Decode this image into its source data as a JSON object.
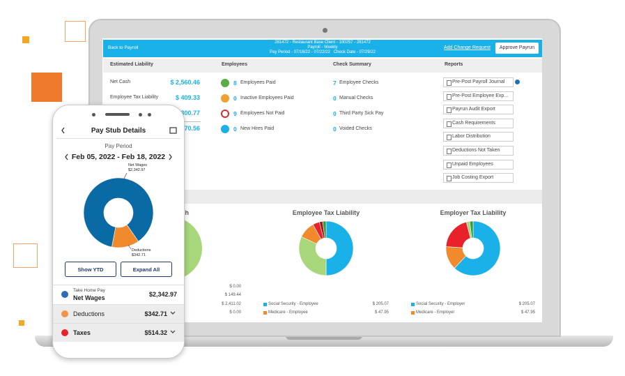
{
  "laptop": {
    "header": {
      "back": "Back to Payroll",
      "client": "281472 - Restaurant Base Client - 100257 - 281472",
      "payroll": "Payroll - Weekly",
      "period": "Pay Period - 07/16/22 - 07/22/22   Check Date - 07/29/22",
      "change_request": "Add Change Request",
      "approve": "Approve Payrun"
    },
    "columns": [
      "Estimated Liability",
      "Employees",
      "Check Summary",
      "Reports"
    ],
    "liability": [
      {
        "label": "Net Cash",
        "amount": "$ 2,560.46"
      },
      {
        "label": "Employee Tax Liability",
        "amount": "$ 409.33"
      }
    ],
    "liability_partial": [
      "300.77",
      "270.56"
    ],
    "employees": [
      {
        "count": "8",
        "label": "Employees Paid",
        "color": "#5aac44"
      },
      {
        "count": "0",
        "label": "Inactive Employees Paid",
        "color": "#f0a030"
      },
      {
        "count": "9",
        "label": "Employees Not Paid",
        "color": "#d03030"
      },
      {
        "count": "0",
        "label": "New Hires Paid",
        "color": "#1ab0e8"
      }
    ],
    "checks": [
      {
        "count": "7",
        "label": "Employee Checks"
      },
      {
        "count": "0",
        "label": "Manual Checks"
      },
      {
        "count": "0",
        "label": "Third Party Sick Pay"
      },
      {
        "count": "0",
        "label": "Voided Checks"
      }
    ],
    "reports": [
      "Pre-Post Payroll Journal",
      "Pre-Post Employee Exp...",
      "Payrun Audit Export",
      "Cash Requirements",
      "Labor Distribution",
      "Deductions Not Taken",
      "Unpaid Employees",
      "Job Costing Export"
    ],
    "cash_title": "Cash",
    "cash_amounts": [
      "$ 0.00",
      "$ 149.44",
      "$ 2,411.02",
      "$ 0.00"
    ],
    "charts": [
      {
        "type": "pie",
        "title": "Employee Tax Liability",
        "values": [
          50,
          32,
          10,
          4,
          2,
          2
        ],
        "colors": [
          "#1ab0e8",
          "#a8d67a",
          "#f08a2c",
          "#e8212b",
          "#a01818",
          "#2e9e3e"
        ],
        "legend": [
          {
            "label": "Social Security - Employee",
            "amount": "$ 205.07",
            "color": "#1ab0e8"
          },
          {
            "label": "Medicare - Employee",
            "amount": "$ 47.95",
            "color": "#f08a2c"
          }
        ]
      },
      {
        "type": "pie",
        "title": "Employer Tax Liability",
        "values": [
          62,
          14,
          20,
          2,
          2
        ],
        "colors": [
          "#1ab0e8",
          "#f08a2c",
          "#e8212b",
          "#a8d67a",
          "#2e9e3e"
        ],
        "legend": [
          {
            "label": "Social Security - Employer",
            "amount": "$ 205.07",
            "color": "#1ab0e8"
          },
          {
            "label": "Medicare - Employer",
            "amount": "$ 47.95",
            "color": "#f08a2c"
          }
        ]
      }
    ]
  },
  "phone": {
    "title": "Pay Stub Details",
    "period_label": "Pay Period",
    "period": "Feb 05, 2022 - Feb 18, 2022",
    "donut": {
      "type": "pie",
      "categories": [
        "Net Wages",
        "Deductions"
      ],
      "values": [
        2342.97,
        342.71
      ],
      "value_labels": [
        "$2,342.97",
        "$342.71"
      ],
      "colors": [
        "#0a6aa6",
        "#f08a2c"
      ]
    },
    "buttons": [
      "Show YTD",
      "Expand All"
    ],
    "rows": [
      {
        "sub": "Take Home Pay",
        "label": "Net Wages",
        "amount": "$2,342.97",
        "color": "#2d6bb5"
      },
      {
        "label": "Deductions",
        "amount": "$342.71",
        "color": "#f5924a"
      },
      {
        "label": "Taxes",
        "amount": "$514.32",
        "color": "#e8212b"
      }
    ]
  }
}
